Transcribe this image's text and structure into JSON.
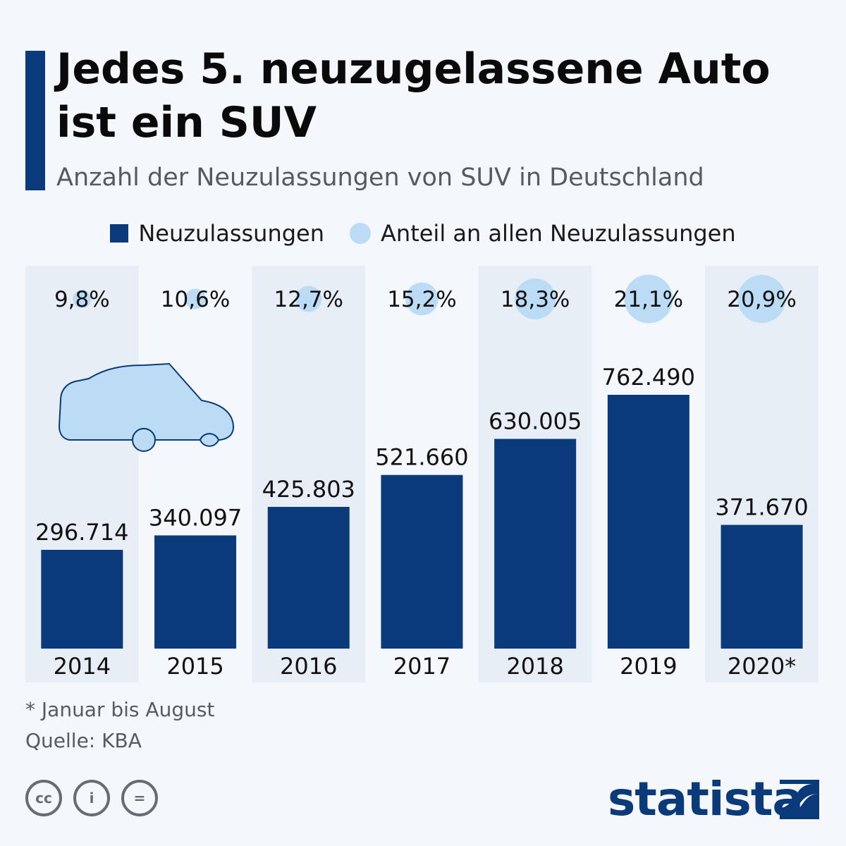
{
  "header": {
    "title": "Jedes 5. neuzugelassene Auto ist ein SUV",
    "subtitle": "Anzahl der Neuzulassungen von SUV in Deutschland"
  },
  "legend": {
    "bars_label": "Neuzulassungen",
    "circles_label": "Anteil an allen Neuzulassungen"
  },
  "colors": {
    "bar": "#0b3a7a",
    "circle": "#bcdcf5",
    "band": "#e8eef6",
    "accent": "#0b3a7a",
    "text": "#111111",
    "muted": "#555b62"
  },
  "chart_data": {
    "type": "bar",
    "title": "Jedes 5. neuzugelassene Auto ist ein SUV",
    "subtitle": "Anzahl der Neuzulassungen von SUV in Deutschland",
    "categories": [
      "2014",
      "2015",
      "2016",
      "2017",
      "2018",
      "2019",
      "2020*"
    ],
    "series": [
      {
        "name": "Neuzulassungen",
        "values": [
          296714,
          340097,
          425803,
          521660,
          630005,
          762490,
          371670
        ],
        "labels": [
          "296.714",
          "340.097",
          "425.803",
          "521.660",
          "630.005",
          "762.490",
          "371.670"
        ]
      },
      {
        "name": "Anteil an allen Neuzulassungen",
        "values": [
          9.8,
          10.6,
          12.7,
          15.2,
          18.3,
          21.1,
          20.9
        ],
        "labels": [
          "9,8%",
          "10,6%",
          "12,7%",
          "15,2%",
          "18,3%",
          "21,1%",
          "20,9%"
        ]
      }
    ],
    "grid": false,
    "legend_position": "top-center"
  },
  "footer": {
    "footnote": "* Januar bis August",
    "source": "Quelle: KBA",
    "brand": "statista",
    "license_icons": [
      "cc-icon",
      "by-icon",
      "nd-icon"
    ],
    "license_labels": [
      "cc",
      "i",
      "="
    ]
  }
}
